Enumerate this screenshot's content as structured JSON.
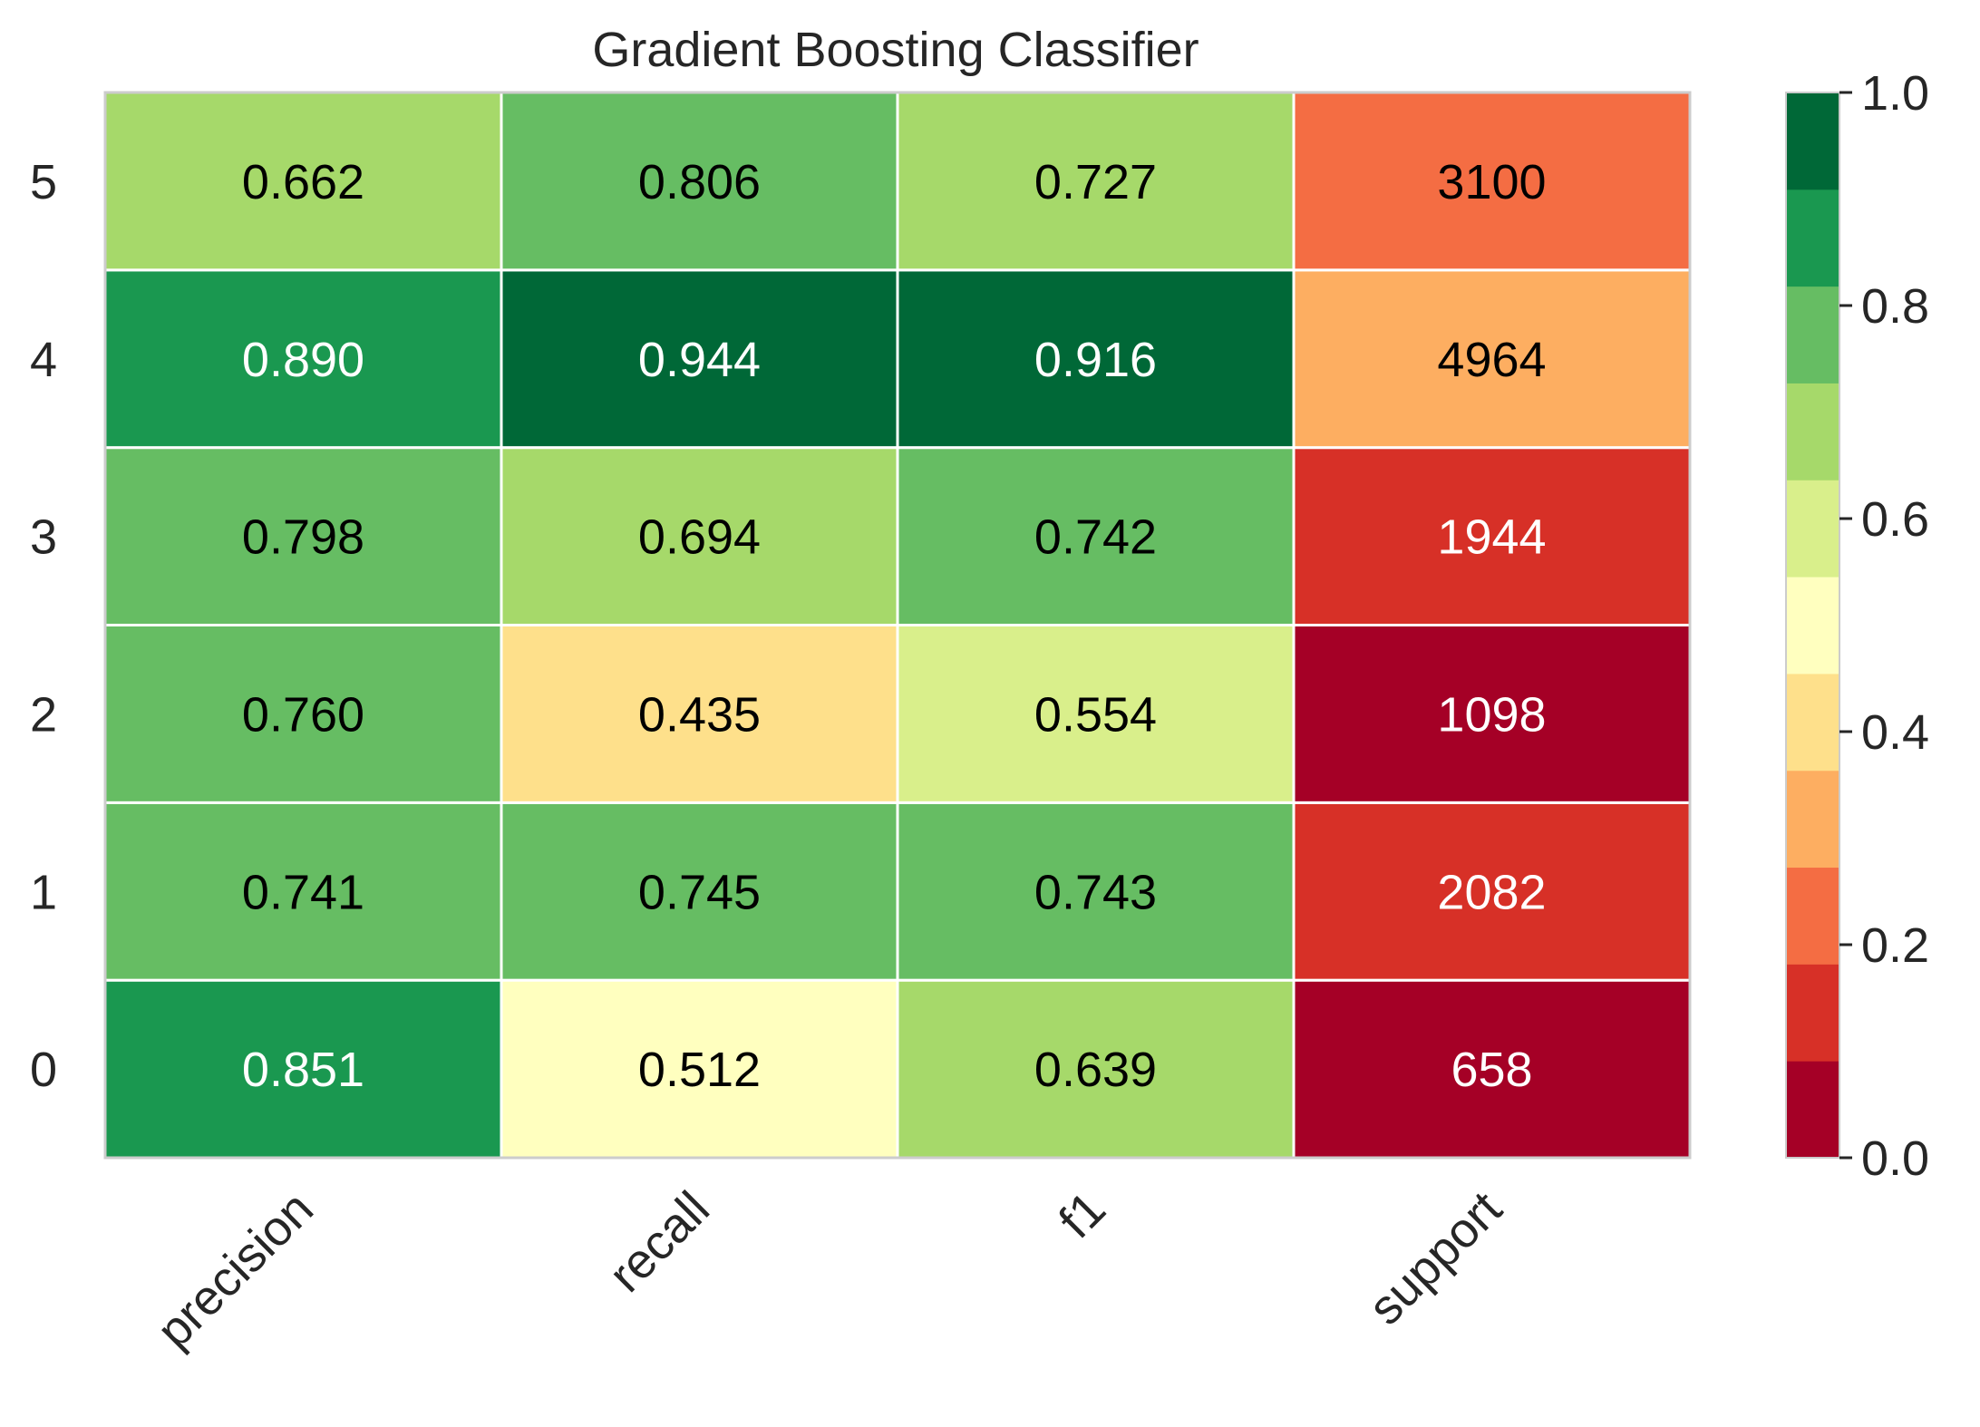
{
  "chart_data": {
    "type": "heatmap",
    "title": "Gradient Boosting Classifier",
    "xlabel": "",
    "ylabel": "",
    "x_categories": [
      "precision",
      "recall",
      "f1",
      "support"
    ],
    "y_categories": [
      "0",
      "1",
      "2",
      "3",
      "4",
      "5"
    ],
    "rows": [
      {
        "class": "0",
        "cells": [
          {
            "label": "0.851",
            "color_value": 0.851,
            "color": "#1a9850",
            "text_color": "#ffffff"
          },
          {
            "label": "0.512",
            "color_value": 0.512,
            "color": "#ffffbf",
            "text_color": "#000000"
          },
          {
            "label": "0.639",
            "color_value": 0.639,
            "color": "#a6d96a",
            "text_color": "#000000"
          },
          {
            "label": "658",
            "color_value": 0.0,
            "color": "#a50026",
            "text_color": "#ffffff"
          }
        ]
      },
      {
        "class": "1",
        "cells": [
          {
            "label": "0.741",
            "color_value": 0.741,
            "color": "#66bd63",
            "text_color": "#000000"
          },
          {
            "label": "0.745",
            "color_value": 0.745,
            "color": "#66bd63",
            "text_color": "#000000"
          },
          {
            "label": "0.743",
            "color_value": 0.743,
            "color": "#66bd63",
            "text_color": "#000000"
          },
          {
            "label": "2082",
            "color_value": 0.14,
            "color": "#d73027",
            "text_color": "#ffffff"
          }
        ]
      },
      {
        "class": "2",
        "cells": [
          {
            "label": "0.760",
            "color_value": 0.76,
            "color": "#66bd63",
            "text_color": "#000000"
          },
          {
            "label": "0.435",
            "color_value": 0.435,
            "color": "#fee08b",
            "text_color": "#000000"
          },
          {
            "label": "0.554",
            "color_value": 0.554,
            "color": "#d9ef8b",
            "text_color": "#000000"
          },
          {
            "label": "1098",
            "color_value": 0.03,
            "color": "#a50026",
            "text_color": "#ffffff"
          }
        ]
      },
      {
        "class": "3",
        "cells": [
          {
            "label": "0.798",
            "color_value": 0.798,
            "color": "#66bd63",
            "text_color": "#000000"
          },
          {
            "label": "0.694",
            "color_value": 0.694,
            "color": "#a6d96a",
            "text_color": "#000000"
          },
          {
            "label": "0.742",
            "color_value": 0.742,
            "color": "#66bd63",
            "text_color": "#000000"
          },
          {
            "label": "1944",
            "color_value": 0.12,
            "color": "#d73027",
            "text_color": "#ffffff"
          }
        ]
      },
      {
        "class": "4",
        "cells": [
          {
            "label": "0.890",
            "color_value": 0.89,
            "color": "#1a9850",
            "text_color": "#ffffff"
          },
          {
            "label": "0.944",
            "color_value": 0.944,
            "color": "#006837",
            "text_color": "#ffffff"
          },
          {
            "label": "0.916",
            "color_value": 0.916,
            "color": "#006837",
            "text_color": "#ffffff"
          },
          {
            "label": "4964",
            "color_value": 0.35,
            "color": "#fdae61",
            "text_color": "#000000"
          }
        ]
      },
      {
        "class": "5",
        "cells": [
          {
            "label": "0.662",
            "color_value": 0.662,
            "color": "#a6d96a",
            "text_color": "#000000"
          },
          {
            "label": "0.806",
            "color_value": 0.806,
            "color": "#66bd63",
            "text_color": "#000000"
          },
          {
            "label": "0.727",
            "color_value": 0.727,
            "color": "#a6d96a",
            "text_color": "#000000"
          },
          {
            "label": "3100",
            "color_value": 0.22,
            "color": "#f46d43",
            "text_color": "#000000"
          }
        ]
      }
    ],
    "colorbar": {
      "range": [
        0.0,
        1.0
      ],
      "ticks": [
        "0.0",
        "0.2",
        "0.4",
        "0.6",
        "0.8",
        "1.0"
      ],
      "colors": [
        "#a50026",
        "#d73027",
        "#f46d43",
        "#fdae61",
        "#fee08b",
        "#ffffbf",
        "#d9ef8b",
        "#a6d96a",
        "#66bd63",
        "#1a9850",
        "#006837"
      ]
    },
    "grid": false,
    "legend": "colorbar-right"
  }
}
